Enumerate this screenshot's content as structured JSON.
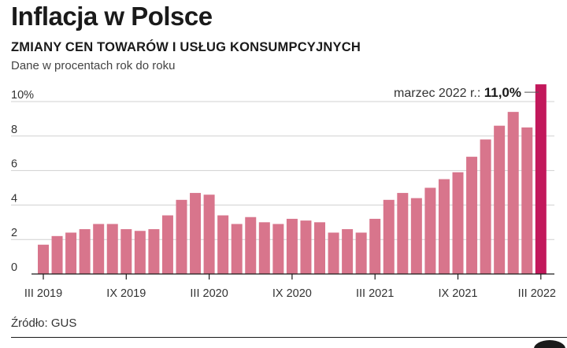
{
  "header": {
    "title": "Inflacja w Polsce",
    "subtitle": "ZMIANY CEN TOWARÓW I USŁUG KONSUMPCYJNYCH",
    "unit_note": "Dane w procentach rok do roku"
  },
  "footer": {
    "source": "Źródło: GUS"
  },
  "colors": {
    "bar": "#d8758c",
    "bar_highlight": "#c2185b",
    "grid": "#d0d0d0",
    "axis": "#1a1a1a"
  },
  "chart_data": {
    "type": "bar",
    "categories": [
      "III 2019",
      "IV 2019",
      "V 2019",
      "VI 2019",
      "VII 2019",
      "VIII 2019",
      "IX 2019",
      "X 2019",
      "XI 2019",
      "XII 2019",
      "I 2020",
      "II 2020",
      "III 2020",
      "IV 2020",
      "V 2020",
      "VI 2020",
      "VII 2020",
      "VIII 2020",
      "IX 2020",
      "X 2020",
      "XI 2020",
      "XII 2020",
      "I 2021",
      "II 2021",
      "III 2021",
      "IV 2021",
      "V 2021",
      "VI 2021",
      "VII 2021",
      "VIII 2021",
      "IX 2021",
      "X 2021",
      "XI 2021",
      "XII 2021",
      "I 2022",
      "II 2022",
      "III 2022"
    ],
    "values": [
      1.7,
      2.2,
      2.4,
      2.6,
      2.9,
      2.9,
      2.6,
      2.5,
      2.6,
      3.4,
      4.3,
      4.7,
      4.6,
      3.4,
      2.9,
      3.3,
      3.0,
      2.9,
      3.2,
      3.1,
      3.0,
      2.4,
      2.6,
      2.4,
      3.2,
      4.3,
      4.7,
      4.4,
      5.0,
      5.5,
      5.9,
      6.8,
      7.8,
      8.6,
      9.4,
      8.5,
      11.0
    ],
    "highlight_index": 36,
    "x_tick_labels": [
      "III 2019",
      "IX 2019",
      "III 2020",
      "IX 2020",
      "III 2021",
      "IX 2021",
      "III 2022"
    ],
    "y_tick_labels": [
      "0",
      "2",
      "4",
      "6",
      "8",
      "10%"
    ],
    "ylim": [
      0,
      11
    ],
    "grid": true,
    "annotation": {
      "label": "marzec 2022 r.:",
      "value": "11,0%"
    }
  }
}
